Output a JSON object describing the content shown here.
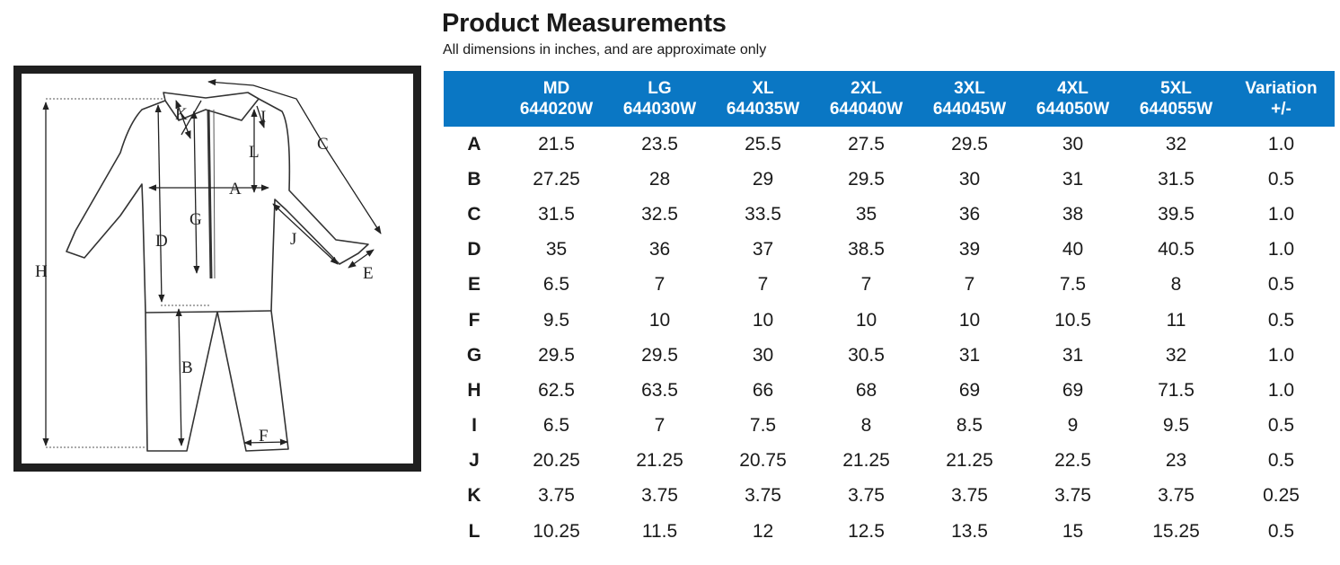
{
  "title": "Product Measurements",
  "subtitle": "All dimensions in inches, and are approximate only",
  "header_color": "#0a77c4",
  "diagram": {
    "labels": [
      "A",
      "B",
      "C",
      "D",
      "E",
      "F",
      "G",
      "H",
      "I",
      "J",
      "K",
      "L"
    ]
  },
  "table": {
    "columns": [
      {
        "size": "MD",
        "code": "644020W"
      },
      {
        "size": "LG",
        "code": "644030W"
      },
      {
        "size": "XL",
        "code": "644035W"
      },
      {
        "size": "2XL",
        "code": "644040W"
      },
      {
        "size": "3XL",
        "code": "644045W"
      },
      {
        "size": "4XL",
        "code": "644050W"
      },
      {
        "size": "5XL",
        "code": "644055W"
      }
    ],
    "variation_header": {
      "line1": "Variation",
      "line2": "+/-"
    },
    "rows": [
      {
        "key": "A",
        "values": [
          "21.5",
          "23.5",
          "25.5",
          "27.5",
          "29.5",
          "30",
          "32"
        ],
        "variation": "1.0"
      },
      {
        "key": "B",
        "values": [
          "27.25",
          "28",
          "29",
          "29.5",
          "30",
          "31",
          "31.5"
        ],
        "variation": "0.5"
      },
      {
        "key": "C",
        "values": [
          "31.5",
          "32.5",
          "33.5",
          "35",
          "36",
          "38",
          "39.5"
        ],
        "variation": "1.0"
      },
      {
        "key": "D",
        "values": [
          "35",
          "36",
          "37",
          "38.5",
          "39",
          "40",
          "40.5"
        ],
        "variation": "1.0"
      },
      {
        "key": "E",
        "values": [
          "6.5",
          "7",
          "7",
          "7",
          "7",
          "7.5",
          "8"
        ],
        "variation": "0.5"
      },
      {
        "key": "F",
        "values": [
          "9.5",
          "10",
          "10",
          "10",
          "10",
          "10.5",
          "11"
        ],
        "variation": "0.5"
      },
      {
        "key": "G",
        "values": [
          "29.5",
          "29.5",
          "30",
          "30.5",
          "31",
          "31",
          "32"
        ],
        "variation": "1.0"
      },
      {
        "key": "H",
        "values": [
          "62.5",
          "63.5",
          "66",
          "68",
          "69",
          "69",
          "71.5"
        ],
        "variation": "1.0"
      },
      {
        "key": "I",
        "values": [
          "6.5",
          "7",
          "7.5",
          "8",
          "8.5",
          "9",
          "9.5"
        ],
        "variation": "0.5"
      },
      {
        "key": "J",
        "values": [
          "20.25",
          "21.25",
          "20.75",
          "21.25",
          "21.25",
          "22.5",
          "23"
        ],
        "variation": "0.5"
      },
      {
        "key": "K",
        "values": [
          "3.75",
          "3.75",
          "3.75",
          "3.75",
          "3.75",
          "3.75",
          "3.75"
        ],
        "variation": "0.25"
      },
      {
        "key": "L",
        "values": [
          "10.25",
          "11.5",
          "12",
          "12.5",
          "13.5",
          "15",
          "15.25"
        ],
        "variation": "0.5"
      }
    ]
  }
}
